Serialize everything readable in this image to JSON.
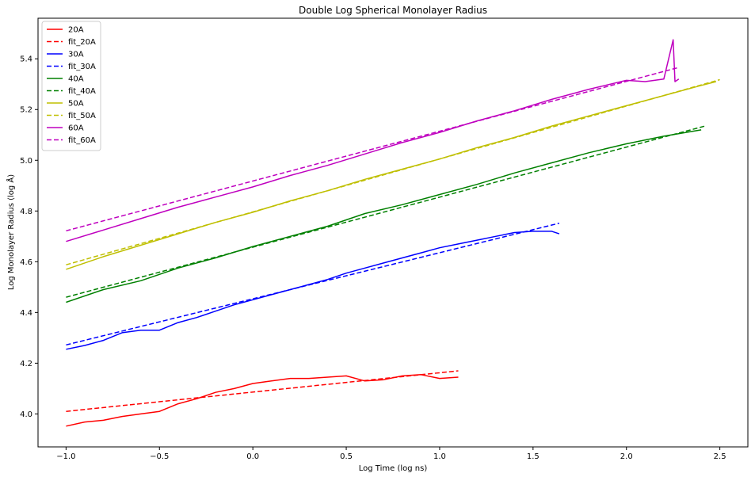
{
  "chart_data": {
    "type": "line",
    "title": "Double Log Spherical Monolayer Radius",
    "xlabel": "Log Time (log ns)",
    "ylabel": "Log Monolayer Radius (log Å)",
    "xlim": [
      -1.15,
      2.65
    ],
    "ylim": [
      3.87,
      5.56
    ],
    "xticks": [
      -1.0,
      -0.5,
      0.0,
      0.5,
      1.0,
      1.5,
      2.0,
      2.5
    ],
    "xtick_labels": [
      "−1.0",
      "−0.5",
      "0.0",
      "0.5",
      "1.0",
      "1.5",
      "2.0",
      "2.5"
    ],
    "yticks": [
      4.0,
      4.2,
      4.4,
      4.6,
      4.8,
      5.0,
      5.2,
      5.4
    ],
    "ytick_labels": [
      "4.0",
      "4.2",
      "4.4",
      "4.6",
      "4.8",
      "5.0",
      "5.2",
      "5.4"
    ],
    "grid": false,
    "legend_position": "top-left",
    "series": [
      {
        "name": "20A",
        "style": "solid",
        "color": "#ff0000",
        "x": [
          -1.0,
          -0.9,
          -0.8,
          -0.7,
          -0.6,
          -0.5,
          -0.4,
          -0.3,
          -0.2,
          -0.1,
          0.0,
          0.1,
          0.2,
          0.3,
          0.4,
          0.5,
          0.6,
          0.7,
          0.8,
          0.9,
          1.0,
          1.1
        ],
        "y": [
          3.952,
          3.968,
          3.975,
          3.99,
          4.0,
          4.01,
          4.04,
          4.06,
          4.085,
          4.1,
          4.12,
          4.13,
          4.14,
          4.14,
          4.145,
          4.15,
          4.13,
          4.135,
          4.15,
          4.155,
          4.14,
          4.145
        ]
      },
      {
        "name": "fit_20A",
        "style": "dashed",
        "color": "#ff0000",
        "x": [
          -1.0,
          1.1
        ],
        "y": [
          4.01,
          4.17
        ]
      },
      {
        "name": "30A",
        "style": "solid",
        "color": "#0000ff",
        "x": [
          -1.0,
          -0.9,
          -0.8,
          -0.7,
          -0.6,
          -0.5,
          -0.4,
          -0.3,
          -0.2,
          -0.1,
          0.0,
          0.1,
          0.2,
          0.3,
          0.4,
          0.5,
          0.6,
          0.7,
          0.8,
          0.9,
          1.0,
          1.1,
          1.2,
          1.3,
          1.4,
          1.5,
          1.6,
          1.64
        ],
        "y": [
          4.255,
          4.27,
          4.29,
          4.32,
          4.33,
          4.33,
          4.36,
          4.38,
          4.405,
          4.43,
          4.45,
          4.47,
          4.49,
          4.51,
          4.53,
          4.555,
          4.575,
          4.595,
          4.615,
          4.635,
          4.655,
          4.67,
          4.685,
          4.7,
          4.715,
          4.72,
          4.72,
          4.71
        ]
      },
      {
        "name": "fit_30A",
        "style": "dashed",
        "color": "#0000ff",
        "x": [
          -1.0,
          1.64
        ],
        "y": [
          4.272,
          4.752
        ]
      },
      {
        "name": "40A",
        "style": "solid",
        "color": "#008000",
        "x": [
          -1.0,
          -0.8,
          -0.6,
          -0.4,
          -0.2,
          0.0,
          0.2,
          0.4,
          0.6,
          0.8,
          1.0,
          1.2,
          1.4,
          1.6,
          1.8,
          2.0,
          2.2,
          2.4
        ],
        "y": [
          4.44,
          4.49,
          4.525,
          4.575,
          4.615,
          4.66,
          4.7,
          4.74,
          4.79,
          4.825,
          4.865,
          4.905,
          4.95,
          4.99,
          5.03,
          5.065,
          5.095,
          5.12
        ]
      },
      {
        "name": "fit_40A",
        "style": "dashed",
        "color": "#008000",
        "x": [
          -1.0,
          2.42
        ],
        "y": [
          4.46,
          5.135
        ]
      },
      {
        "name": "50A",
        "style": "solid",
        "color": "#bfbf00",
        "x": [
          -1.0,
          -0.8,
          -0.6,
          -0.4,
          -0.2,
          0.0,
          0.2,
          0.4,
          0.6,
          0.8,
          1.0,
          1.2,
          1.4,
          1.6,
          1.8,
          2.0,
          2.2,
          2.4,
          2.48
        ],
        "y": [
          4.57,
          4.62,
          4.665,
          4.71,
          4.755,
          4.795,
          4.84,
          4.88,
          4.925,
          4.965,
          5.005,
          5.05,
          5.09,
          5.135,
          5.175,
          5.215,
          5.255,
          5.295,
          5.31
        ]
      },
      {
        "name": "fit_50A",
        "style": "dashed",
        "color": "#bfbf00",
        "x": [
          -1.0,
          2.5
        ],
        "y": [
          4.588,
          5.318
        ]
      },
      {
        "name": "60A",
        "style": "solid",
        "color": "#bf00bf",
        "x": [
          -1.0,
          -0.8,
          -0.6,
          -0.4,
          -0.2,
          0.0,
          0.2,
          0.4,
          0.6,
          0.8,
          1.0,
          1.2,
          1.4,
          1.6,
          1.8,
          2.0,
          2.1,
          2.2,
          2.25,
          2.26,
          2.28
        ],
        "y": [
          4.68,
          4.725,
          4.77,
          4.815,
          4.855,
          4.895,
          4.94,
          4.98,
          5.025,
          5.07,
          5.11,
          5.155,
          5.195,
          5.24,
          5.28,
          5.315,
          5.31,
          5.32,
          5.475,
          5.31,
          5.32
        ]
      },
      {
        "name": "fit_60A",
        "style": "dashed",
        "color": "#bf00bf",
        "x": [
          -1.0,
          2.28
        ],
        "y": [
          4.722,
          5.366
        ]
      }
    ]
  }
}
